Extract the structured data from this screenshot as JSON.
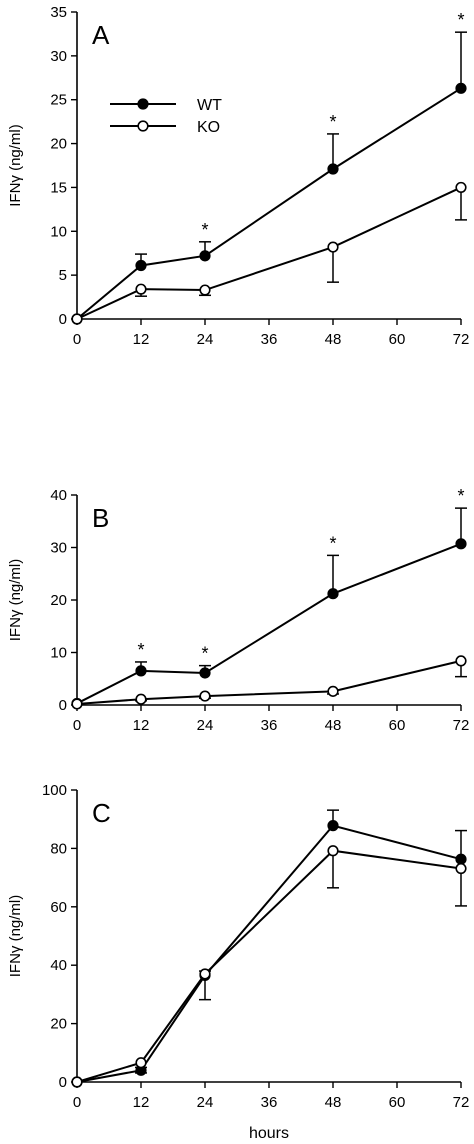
{
  "chart_data": [
    {
      "type": "line",
      "panel": "A",
      "ylabel": "IFNγ (ng/ml)",
      "xlabel": "",
      "x": [
        0,
        12,
        24,
        48,
        72
      ],
      "xticks": [
        "0",
        "12",
        "24",
        "36",
        "48",
        "60",
        "72"
      ],
      "xlim": [
        0,
        72
      ],
      "ylim": [
        0,
        35
      ],
      "yticks": [
        "0",
        "5",
        "10",
        "15",
        "20",
        "25",
        "30",
        "35"
      ],
      "legend": {
        "position": "top-left"
      },
      "series": [
        {
          "name": "WT",
          "marker": "filled-circle",
          "values": [
            0,
            6.1,
            7.2,
            17.1,
            26.3
          ],
          "err": [
            0,
            1.3,
            1.6,
            4.0,
            6.4
          ]
        },
        {
          "name": "KO",
          "marker": "open-circle",
          "values": [
            0,
            3.4,
            3.3,
            8.2,
            15.0
          ],
          "err": [
            0,
            0.8,
            0.6,
            4.0,
            3.7
          ]
        }
      ],
      "annotations": [
        {
          "x": 24,
          "text": "*"
        },
        {
          "x": 48,
          "text": "*"
        },
        {
          "x": 72,
          "text": "*"
        }
      ]
    },
    {
      "type": "line",
      "panel": "B",
      "ylabel": "IFNγ (ng/ml)",
      "xlabel": "",
      "x": [
        0,
        12,
        24,
        48,
        72
      ],
      "xticks": [
        "0",
        "12",
        "24",
        "36",
        "48",
        "60",
        "72"
      ],
      "xlim": [
        0,
        72
      ],
      "ylim": [
        0,
        40
      ],
      "yticks": [
        "0",
        "10",
        "20",
        "30",
        "40"
      ],
      "series": [
        {
          "name": "WT",
          "marker": "filled-circle",
          "values": [
            0.3,
            6.5,
            6.1,
            21.2,
            30.7
          ],
          "err": [
            0,
            1.7,
            1.4,
            7.3,
            6.8
          ]
        },
        {
          "name": "KO",
          "marker": "open-circle",
          "values": [
            0.2,
            1.1,
            1.7,
            2.6,
            8.4
          ],
          "err": [
            0,
            0.3,
            0.4,
            0.5,
            3.0
          ]
        }
      ],
      "annotations": [
        {
          "x": 12,
          "text": "*"
        },
        {
          "x": 24,
          "text": "*"
        },
        {
          "x": 48,
          "text": "*"
        },
        {
          "x": 72,
          "text": "*"
        }
      ]
    },
    {
      "type": "line",
      "panel": "C",
      "ylabel": "IFNγ (ng/ml)",
      "xlabel": "hours",
      "x": [
        0,
        12,
        24,
        48,
        72
      ],
      "xticks": [
        "0",
        "12",
        "24",
        "36",
        "48",
        "60",
        "72"
      ],
      "xlim": [
        0,
        72
      ],
      "ylim": [
        0,
        100
      ],
      "yticks": [
        "0",
        "20",
        "40",
        "60",
        "80",
        "100"
      ],
      "series": [
        {
          "name": "WT",
          "marker": "filled-circle",
          "values": [
            0,
            4.0,
            36.5,
            87.8,
            76.3
          ],
          "err": [
            0,
            1.0,
            1.5,
            5.3,
            9.8
          ]
        },
        {
          "name": "KO",
          "marker": "open-circle",
          "values": [
            0,
            6.6,
            37.0,
            79.2,
            73.1
          ],
          "err": [
            0,
            3.5,
            8.8,
            12.7,
            12.8
          ]
        }
      ],
      "annotations": []
    }
  ]
}
